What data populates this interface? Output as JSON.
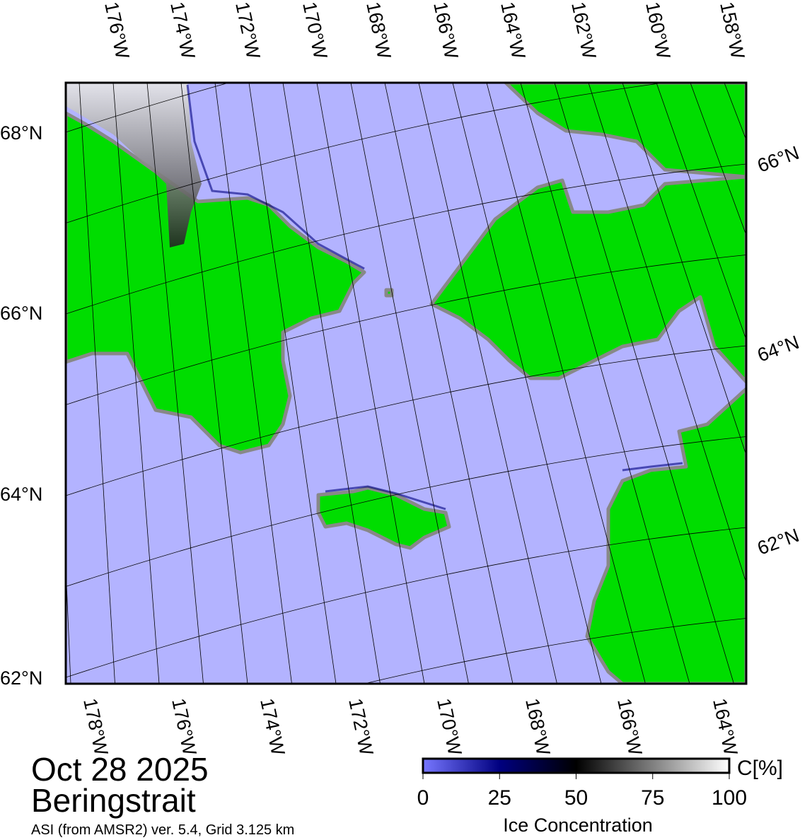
{
  "map": {
    "region": "Beringstrait",
    "date": "Oct 28 2025",
    "source": "ASI (from AMSR2) ver. 5.4,  Grid 3.125 km",
    "top_lon_labels": [
      "176°W",
      "174°W",
      "172°W",
      "170°W",
      "168°W",
      "166°W",
      "164°W",
      "162°W",
      "160°W",
      "158°W"
    ],
    "bottom_lon_labels": [
      "178°W",
      "176°W",
      "174°W",
      "172°W",
      "170°W",
      "168°W",
      "166°W",
      "164°W"
    ],
    "left_lat_labels": [
      "68°N",
      "66°N",
      "64°N",
      "62°N"
    ],
    "right_lat_labels": [
      "66°N",
      "64°N",
      "62°N"
    ],
    "colors": {
      "ocean": "#b3b3ff",
      "land": "#00dd00",
      "coast": "#888888",
      "ice_low": "#000080"
    }
  },
  "colorbar": {
    "title": "Ice Concentration",
    "unit": "C[%]",
    "ticks": [
      "0",
      "25",
      "50",
      "75",
      "100"
    ],
    "range": [
      0,
      100
    ]
  }
}
